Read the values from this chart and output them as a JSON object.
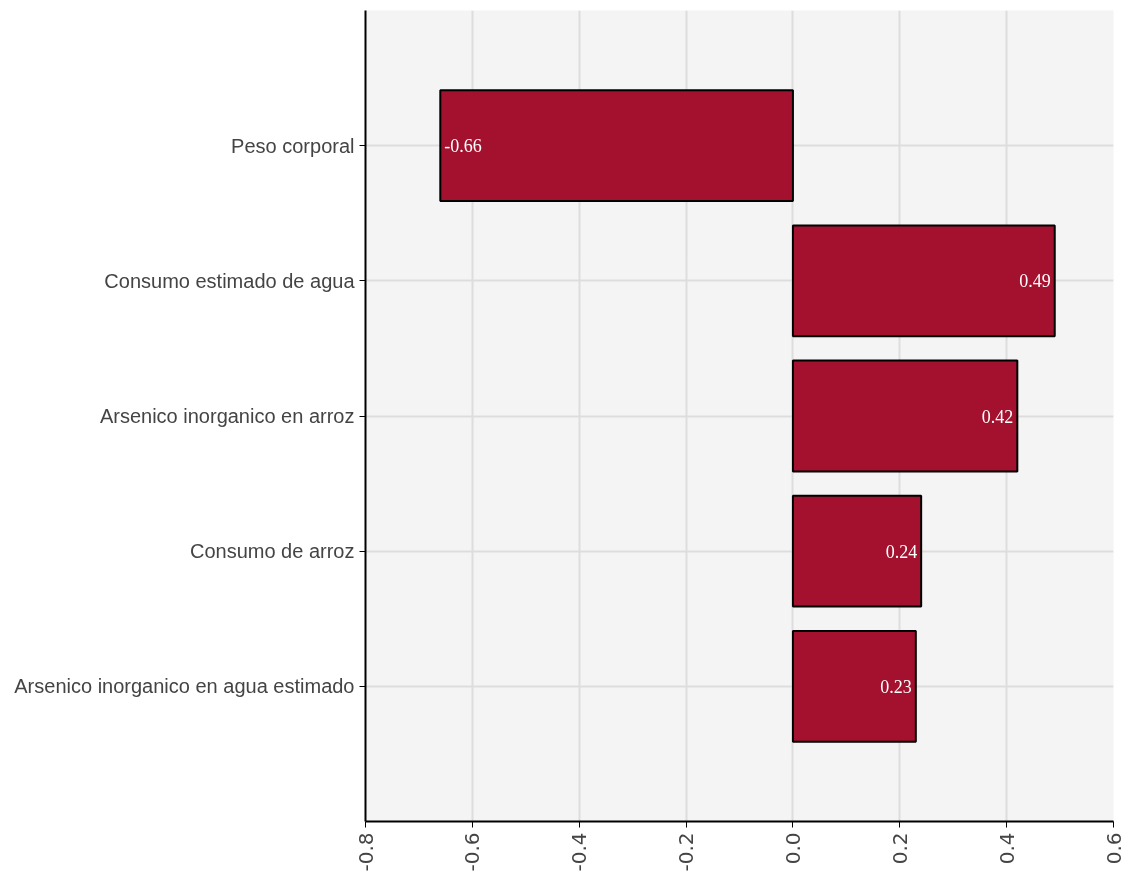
{
  "chart_data": {
    "type": "bar",
    "orientation": "horizontal",
    "categories": [
      "Peso corporal",
      "Consumo estimado de agua",
      "Arsenico inorganico en arroz",
      "Consumo de arroz",
      "Arsenico inorganico en agua estimado"
    ],
    "values": [
      -0.66,
      0.49,
      0.42,
      0.24,
      0.23
    ],
    "color": "#a3112e",
    "xlim": [
      -0.8,
      0.6
    ],
    "xticks": [
      -0.8,
      -0.6,
      -0.4,
      -0.2,
      {
        "value": 0,
        "label": "0.0"
      },
      0.2,
      0.4,
      0.6
    ],
    "grid": true,
    "data_labels": true
  }
}
